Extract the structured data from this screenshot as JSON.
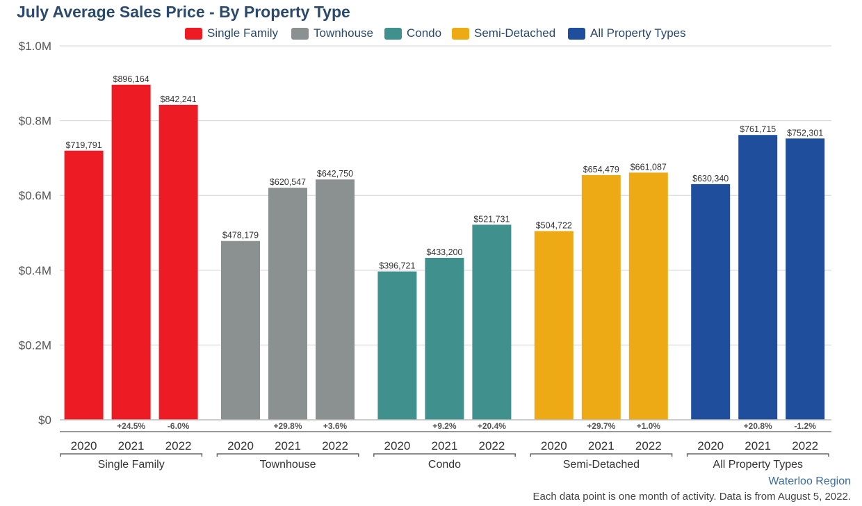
{
  "title": "July Average Sales Price - By Property Type",
  "region": "Waterloo Region",
  "footnote": "Each data point is one month of activity. Data is from August 5, 2022.",
  "chart_data": {
    "type": "bar",
    "title": "July Average Sales Price - By Property Type",
    "xlabel": "",
    "ylabel": "",
    "ylim": [
      0,
      1000000
    ],
    "yticks": [
      {
        "value": 0,
        "label": "$0"
      },
      {
        "value": 200000,
        "label": "$0.2M"
      },
      {
        "value": 400000,
        "label": "$0.4M"
      },
      {
        "value": 600000,
        "label": "$0.6M"
      },
      {
        "value": 800000,
        "label": "$0.8M"
      },
      {
        "value": 1000000,
        "label": "$1.0M"
      }
    ],
    "grid": true,
    "legend_position": "top",
    "groups": [
      {
        "name": "Single Family",
        "color": "#ed1c24",
        "bars": [
          {
            "year": "2020",
            "value": 719791,
            "label": "$719,791",
            "change": ""
          },
          {
            "year": "2021",
            "value": 896164,
            "label": "$896,164",
            "change": "+24.5%"
          },
          {
            "year": "2022",
            "value": 842241,
            "label": "$842,241",
            "change": "-6.0%"
          }
        ]
      },
      {
        "name": "Townhouse",
        "color": "#8a9190",
        "bars": [
          {
            "year": "2020",
            "value": 478179,
            "label": "$478,179",
            "change": ""
          },
          {
            "year": "2021",
            "value": 620547,
            "label": "$620,547",
            "change": "+29.8%"
          },
          {
            "year": "2022",
            "value": 642750,
            "label": "$642,750",
            "change": "+3.6%"
          }
        ]
      },
      {
        "name": "Condo",
        "color": "#40908e",
        "bars": [
          {
            "year": "2020",
            "value": 396721,
            "label": "$396,721",
            "change": ""
          },
          {
            "year": "2021",
            "value": 433200,
            "label": "$433,200",
            "change": "+9.2%"
          },
          {
            "year": "2022",
            "value": 521731,
            "label": "$521,731",
            "change": "+20.4%"
          }
        ]
      },
      {
        "name": "Semi-Detached",
        "color": "#eeaa14",
        "bars": [
          {
            "year": "2020",
            "value": 504722,
            "label": "$504,722",
            "change": ""
          },
          {
            "year": "2021",
            "value": 654479,
            "label": "$654,479",
            "change": "+29.7%"
          },
          {
            "year": "2022",
            "value": 661087,
            "label": "$661,087",
            "change": "+1.0%"
          }
        ]
      },
      {
        "name": "All Property Types",
        "color": "#1f4e9c",
        "bars": [
          {
            "year": "2020",
            "value": 630340,
            "label": "$630,340",
            "change": ""
          },
          {
            "year": "2021",
            "value": 761715,
            "label": "$761,715",
            "change": "+20.8%"
          },
          {
            "year": "2022",
            "value": 752301,
            "label": "$752,301",
            "change": "-1.2%"
          }
        ]
      }
    ]
  }
}
